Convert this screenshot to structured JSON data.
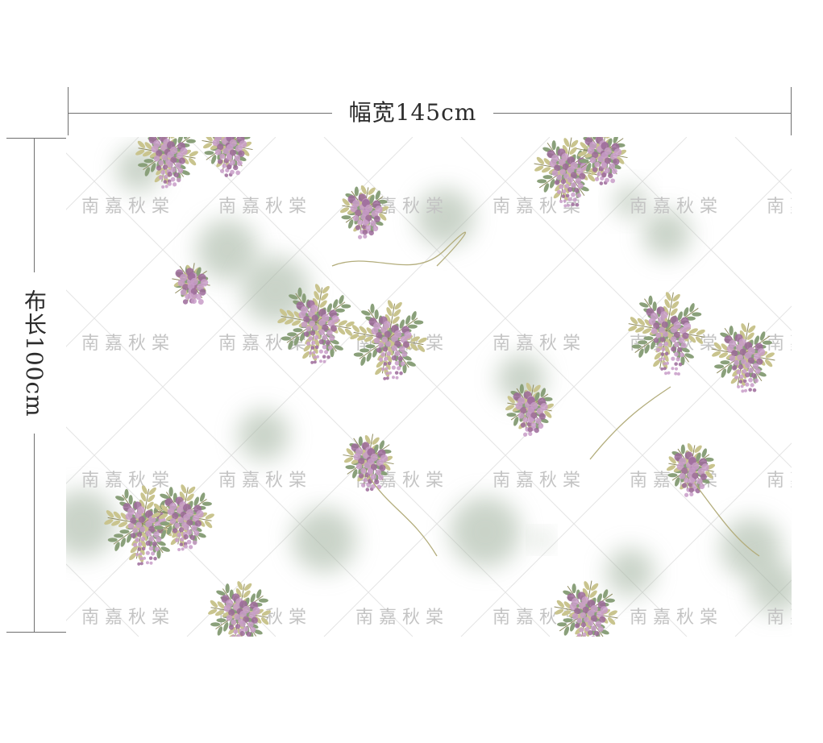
{
  "dimensions": {
    "width_label": "幅宽145cm",
    "length_label": "布长100cm"
  },
  "fabric": {
    "motif": "wisteria",
    "watermark_text": "南嘉秋棠",
    "colors": {
      "background": "#ffffff",
      "grid": "#e4e4e4",
      "ink_wash": "#9fb09c",
      "leaf": "#8aa07a",
      "leaf_light": "#c9c48e",
      "flower": "#c89cc8",
      "flower_dark": "#9c6a9a",
      "watermark": "#c4c4c4"
    }
  }
}
